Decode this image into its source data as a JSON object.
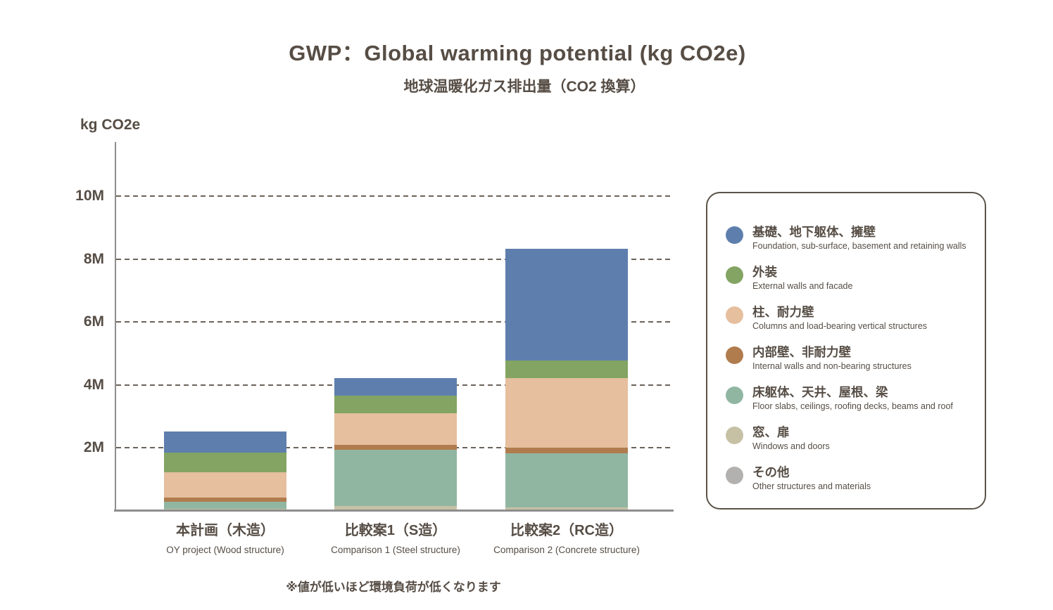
{
  "header": {
    "title": "GWP：Global warming potential (kg CO2e)",
    "subtitle": "地球温暖化ガス排出量（CO2 換算）"
  },
  "footnote": "※値が低いほど環境負荷が低くなります",
  "colors": {
    "text": "#564d45",
    "axis_line": "#8e8e8e",
    "gridline": "#6b635a",
    "legend_border": "#5b5349",
    "background": "#ffffff"
  },
  "chart_data": {
    "type": "bar",
    "stacked": true,
    "title": "GWP：Global warming potential (kg CO2e)",
    "subtitle": "地球温暖化ガス排出量（CO2 換算）",
    "ylabel": "kg CO2e",
    "xlabel": "",
    "ylim": [
      0,
      10000000
    ],
    "yticks": [
      2000000,
      4000000,
      6000000,
      8000000,
      10000000
    ],
    "ytick_labels": [
      "2M",
      "4M",
      "6M",
      "8M",
      "10M"
    ],
    "grid": "horizontal dashed lines, drawn behind bars",
    "legend_position": "right, rounded-border box",
    "stack_note": "series listed in legend order (top of stack first); bars stack bottom-to-top in reverse legend order: windows at bottom, foundation at top",
    "categories": [
      {
        "jp": "本計画（木造）",
        "en": "OY project (Wood structure)"
      },
      {
        "jp": "比較案1（S造）",
        "en": "Comparison 1 (Steel structure)"
      },
      {
        "jp": "比較案2（RC造）",
        "en": "Comparison 2 (Concrete structure)"
      }
    ],
    "totals": [
      2520000,
      4210000,
      8330000
    ],
    "series": [
      {
        "name_jp": "基礎、地下躯体、擁壁",
        "name_en": "Foundation, sub-surface, basement and retaining walls",
        "color": "#5e7fad",
        "values": [
          670000,
          540000,
          3550000
        ]
      },
      {
        "name_jp": "外装",
        "name_en": "External walls and facade",
        "color": "#83a462",
        "values": [
          630000,
          560000,
          560000
        ]
      },
      {
        "name_jp": "柱、耐力壁",
        "name_en": "Columns and load-bearing vertical structures",
        "color": "#e5bf9e",
        "values": [
          800000,
          1000000,
          2210000
        ]
      },
      {
        "name_jp": "内部壁、非耐力壁",
        "name_en": "Internal walls and non-bearing structures",
        "color": "#b07c4e",
        "values": [
          130000,
          160000,
          180000
        ]
      },
      {
        "name_jp": "床躯体、天井、屋根、梁",
        "name_en": "Floor slabs, ceilings, roofing decks, beams and roof",
        "color": "#90b6a2",
        "values": [
          220000,
          1790000,
          1720000
        ]
      },
      {
        "name_jp": "窓、扉",
        "name_en": "Windows and doors",
        "color": "#c6c1a5",
        "values": [
          70000,
          160000,
          110000
        ]
      },
      {
        "name_jp": "その他",
        "name_en": "Other structures and materials",
        "color": "#b2b1b0",
        "values": [
          0,
          0,
          0
        ]
      }
    ]
  }
}
